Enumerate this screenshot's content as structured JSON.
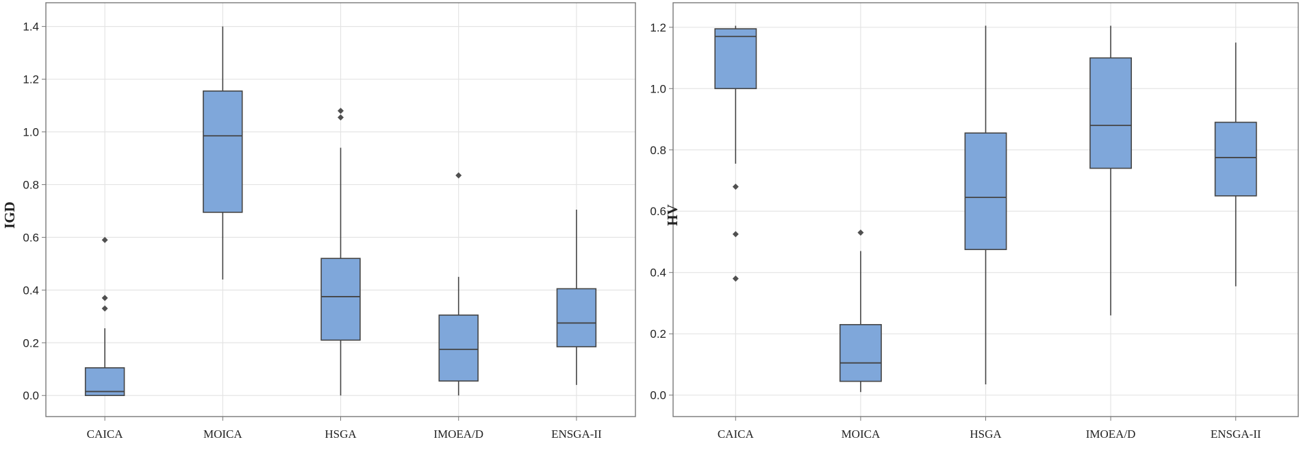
{
  "figure": {
    "colors": {
      "box_fill": "#7fa7da",
      "box_stroke": "#444444",
      "grid": "#e4e4e4",
      "frame": "#777777",
      "outlier": "#505050"
    }
  },
  "chart_data": [
    {
      "type": "boxplot",
      "ylabel": "IGD",
      "xlabel": "",
      "ylim": [
        -0.08,
        1.49
      ],
      "yticks": [
        0.0,
        0.2,
        0.4,
        0.6,
        0.8,
        1.0,
        1.2,
        1.4
      ],
      "ytick_labels": [
        "0.0",
        "0.2",
        "0.4",
        "0.6",
        "0.8",
        "1.0",
        "1.2",
        "1.4"
      ],
      "grid": true,
      "categories": [
        "CAICA",
        "MOICA",
        "HSGA",
        "IMOEA/D",
        "ENSGA-II"
      ],
      "boxes": [
        {
          "label": "CAICA",
          "whisker_low": 0.0,
          "q1": 0.0,
          "median": 0.015,
          "q3": 0.105,
          "whisker_high": 0.255,
          "outliers": [
            0.33,
            0.37,
            0.59
          ]
        },
        {
          "label": "MOICA",
          "whisker_low": 0.44,
          "q1": 0.695,
          "median": 0.985,
          "q3": 1.155,
          "whisker_high": 1.4,
          "outliers": []
        },
        {
          "label": "HSGA",
          "whisker_low": 0.0,
          "q1": 0.21,
          "median": 0.375,
          "q3": 0.52,
          "whisker_high": 0.94,
          "outliers": [
            1.055,
            1.08
          ]
        },
        {
          "label": "IMOEA/D",
          "whisker_low": 0.0,
          "q1": 0.055,
          "median": 0.175,
          "q3": 0.305,
          "whisker_high": 0.45,
          "outliers": [
            0.835
          ]
        },
        {
          "label": "ENSGA-II",
          "whisker_low": 0.04,
          "q1": 0.185,
          "median": 0.275,
          "q3": 0.405,
          "whisker_high": 0.705,
          "outliers": []
        }
      ]
    },
    {
      "type": "boxplot",
      "ylabel": "HV",
      "xlabel": "",
      "ylim": [
        -0.07,
        1.28
      ],
      "yticks": [
        0.0,
        0.2,
        0.4,
        0.6,
        0.8,
        1.0,
        1.2
      ],
      "ytick_labels": [
        "0.0",
        "0.2",
        "0.4",
        "0.6",
        "0.8",
        "1.0",
        "1.2"
      ],
      "grid": true,
      "categories": [
        "CAICA",
        "MOICA",
        "HSGA",
        "IMOEA/D",
        "ENSGA-II"
      ],
      "boxes": [
        {
          "label": "CAICA",
          "whisker_low": 0.755,
          "q1": 1.0,
          "median": 1.17,
          "q3": 1.195,
          "whisker_high": 1.205,
          "outliers": [
            0.38,
            0.525,
            0.68
          ]
        },
        {
          "label": "MOICA",
          "whisker_low": 0.01,
          "q1": 0.045,
          "median": 0.105,
          "q3": 0.23,
          "whisker_high": 0.47,
          "outliers": [
            0.53
          ]
        },
        {
          "label": "HSGA",
          "whisker_low": 0.035,
          "q1": 0.475,
          "median": 0.645,
          "q3": 0.855,
          "whisker_high": 1.205,
          "outliers": []
        },
        {
          "label": "IMOEA/D",
          "whisker_low": 0.26,
          "q1": 0.74,
          "median": 0.88,
          "q3": 1.1,
          "whisker_high": 1.205,
          "outliers": []
        },
        {
          "label": "ENSGA-II",
          "whisker_low": 0.355,
          "q1": 0.65,
          "median": 0.775,
          "q3": 0.89,
          "whisker_high": 1.15,
          "outliers": []
        }
      ]
    }
  ]
}
